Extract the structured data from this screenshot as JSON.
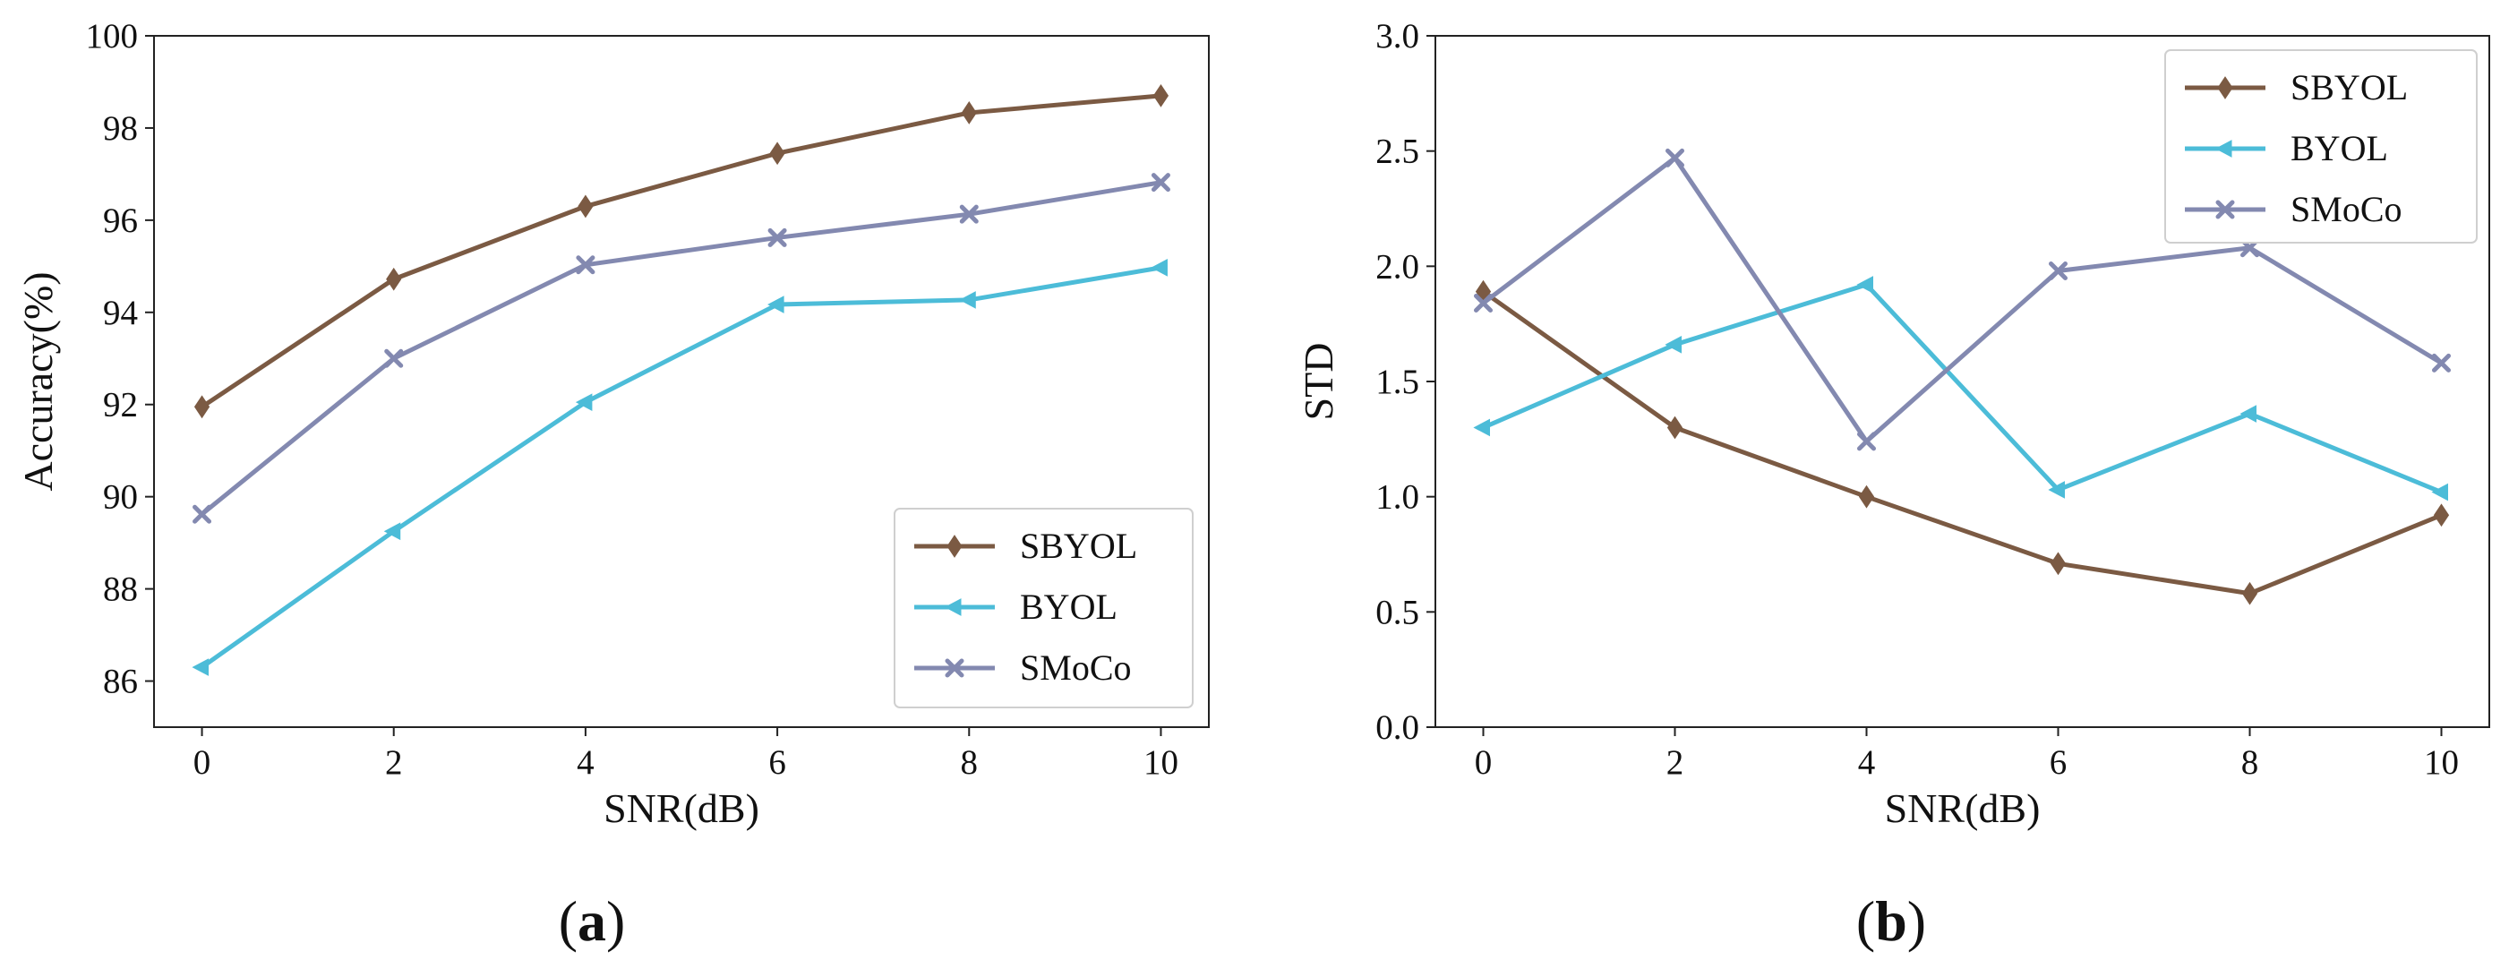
{
  "chart_data": [
    {
      "type": "line",
      "panel_label": {
        "open": "(",
        "letter": "a",
        "close": ")"
      },
      "xlabel": "SNR(dB)",
      "ylabel": "Accuracy(%)",
      "x": [
        0,
        2,
        4,
        6,
        8,
        10
      ],
      "xlim": [
        -0.5,
        10.5
      ],
      "ylim": [
        85,
        100
      ],
      "xticks": [
        0,
        2,
        4,
        6,
        8,
        10
      ],
      "xtick_labels": [
        "0",
        "2",
        "4",
        "6",
        "8",
        "10"
      ],
      "yticks": [
        86,
        88,
        90,
        92,
        94,
        96,
        98,
        100
      ],
      "ytick_labels": [
        "86",
        "88",
        "90",
        "92",
        "94",
        "96",
        "98",
        "100"
      ],
      "grid": false,
      "legend_position": "bottom-right",
      "series": [
        {
          "name": "SBYOL",
          "color": "#7b5a43",
          "marker": "diamond",
          "values": [
            91.95,
            94.72,
            96.3,
            97.45,
            98.33,
            98.7
          ]
        },
        {
          "name": "BYOL",
          "color": "#4cbcd8",
          "marker": "triangle-left",
          "values": [
            86.3,
            89.25,
            92.05,
            94.17,
            94.27,
            94.97
          ]
        },
        {
          "name": "SMoCo",
          "color": "#8389b0",
          "marker": "x",
          "values": [
            89.62,
            93.0,
            95.03,
            95.62,
            96.13,
            96.82
          ]
        }
      ]
    },
    {
      "type": "line",
      "panel_label": {
        "open": "(",
        "letter": "b",
        "close": ")"
      },
      "xlabel": "SNR(dB)",
      "ylabel": "STD",
      "x": [
        0,
        2,
        4,
        6,
        8,
        10
      ],
      "xlim": [
        -0.5,
        10.5
      ],
      "ylim": [
        0.0,
        3.0
      ],
      "xticks": [
        0,
        2,
        4,
        6,
        8,
        10
      ],
      "xtick_labels": [
        "0",
        "2",
        "4",
        "6",
        "8",
        "10"
      ],
      "yticks": [
        0.0,
        0.5,
        1.0,
        1.5,
        2.0,
        2.5,
        3.0
      ],
      "ytick_labels": [
        "0.0",
        "0.5",
        "1.0",
        "1.5",
        "2.0",
        "2.5",
        "3.0"
      ],
      "grid": false,
      "legend_position": "top-right",
      "series": [
        {
          "name": "SBYOL",
          "color": "#7b5a43",
          "marker": "diamond",
          "values": [
            1.89,
            1.3,
            1.0,
            0.71,
            0.58,
            0.92
          ]
        },
        {
          "name": "BYOL",
          "color": "#4cbcd8",
          "marker": "triangle-left",
          "values": [
            1.3,
            1.66,
            1.92,
            1.03,
            1.36,
            1.02
          ]
        },
        {
          "name": "SMoCo",
          "color": "#8389b0",
          "marker": "x",
          "values": [
            1.84,
            2.47,
            1.24,
            1.98,
            2.08,
            1.58
          ]
        }
      ]
    }
  ]
}
